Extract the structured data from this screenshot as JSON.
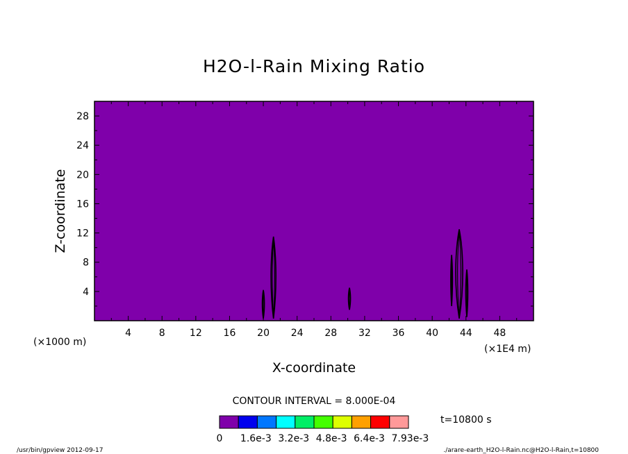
{
  "chart_data": {
    "type": "heatmap",
    "title": "H2O-l-Rain Mixing Ratio",
    "xlabel": "X-coordinate",
    "ylabel": "Z-coordinate",
    "x_unit_left": "(×1000 m)",
    "x_unit_right": "(×1E4 m)",
    "xlim": [
      0,
      52
    ],
    "ylim": [
      0,
      30
    ],
    "xticks": [
      4,
      8,
      12,
      16,
      20,
      24,
      28,
      32,
      36,
      40,
      44,
      48
    ],
    "yticks": [
      4,
      8,
      12,
      16,
      20,
      24,
      28
    ],
    "background_color": "#7f00aa",
    "contour_color": "#000000",
    "contour_interval_label": "CONTOUR INTERVAL = 8.000E-04",
    "time_label": "t=10800 s",
    "colorbar": {
      "colors": [
        "#7f00aa",
        "#0000ee",
        "#0077ff",
        "#00ffff",
        "#00ee66",
        "#44ff00",
        "#ddff00",
        "#ffa000",
        "#ff0000",
        "#ff9999"
      ],
      "labels": [
        "0",
        "1.6e-3",
        "3.2e-3",
        "4.8e-3",
        "6.4e-3",
        "7.93e-3"
      ]
    },
    "rain_features": [
      {
        "x": 21.2,
        "z_bottom": 0.3,
        "z_top": 11.5,
        "half_width": 0.35
      },
      {
        "x": 20.0,
        "z_bottom": 0.3,
        "z_top": 4.2,
        "half_width": 0.15
      },
      {
        "x": 30.2,
        "z_bottom": 1.5,
        "z_top": 4.5,
        "half_width": 0.15
      },
      {
        "x": 43.2,
        "z_bottom": 0.3,
        "z_top": 12.5,
        "half_width": 0.5
      },
      {
        "x": 42.3,
        "z_bottom": 2.0,
        "z_top": 9.0,
        "half_width": 0.12
      },
      {
        "x": 44.1,
        "z_bottom": 0.5,
        "z_top": 7.0,
        "half_width": 0.15
      }
    ]
  },
  "footer": {
    "left": "/usr/bin/gpview  2012-09-17",
    "right": "./arare-earth_H2O-l-Rain.nc@H2O-l-Rain,t=10800"
  }
}
